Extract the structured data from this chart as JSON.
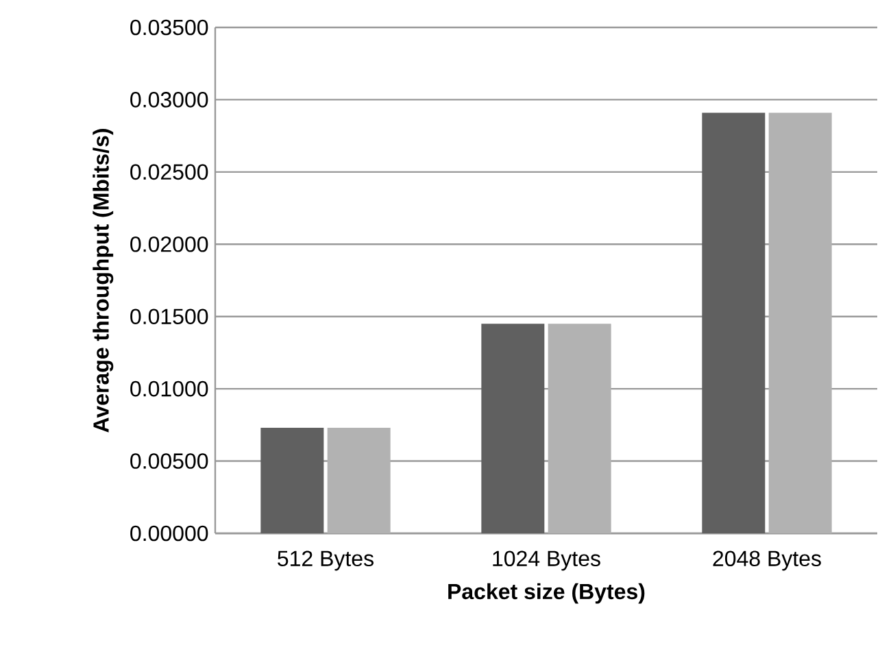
{
  "chart_data": {
    "type": "bar",
    "xlabel": "Packet size (Bytes)",
    "ylabel": "Average throughput (Mbits/s)",
    "categories": [
      "512 Bytes",
      "1024 Bytes",
      "2048 Bytes"
    ],
    "series": [
      {
        "color": "#606060",
        "values": [
          0.0073,
          0.0145,
          0.0291
        ]
      },
      {
        "color": "#b2b2b2",
        "values": [
          0.0073,
          0.0145,
          0.0291
        ]
      }
    ],
    "ylim": [
      0,
      0.035
    ],
    "yticks": [
      {
        "value": 0,
        "label": "0.00000"
      },
      {
        "value": 0.005,
        "label": "0.00500"
      },
      {
        "value": 0.01,
        "label": "0.01000"
      },
      {
        "value": 0.015,
        "label": "0.01500"
      },
      {
        "value": 0.02,
        "label": "0.02000"
      },
      {
        "value": 0.025,
        "label": "0.02500"
      },
      {
        "value": 0.03,
        "label": "0.03000"
      },
      {
        "value": 0.035,
        "label": "0.03500"
      }
    ],
    "grid": "y"
  }
}
